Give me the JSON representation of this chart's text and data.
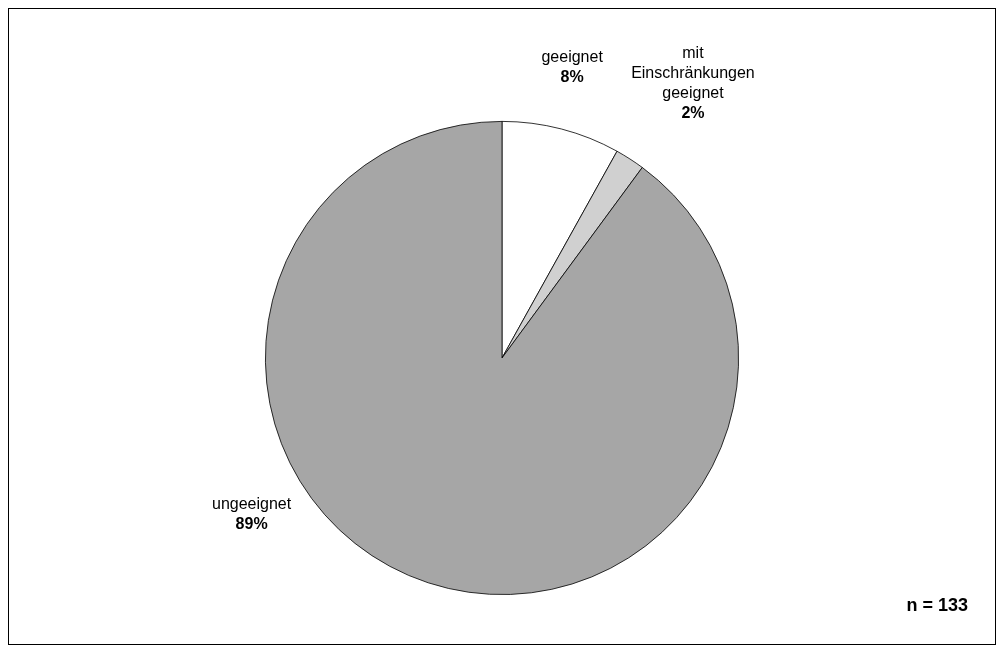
{
  "chart_data": {
    "type": "pie",
    "categories": [
      "geeignet",
      "mit Einschränkungen geeignet",
      "ungeeignet"
    ],
    "values": [
      8,
      2,
      89
    ],
    "value_labels": [
      "8%",
      "2%",
      "89%"
    ],
    "colors": [
      "#ffffff",
      "#d0d0d0",
      "#a6a6a6"
    ],
    "legend": false,
    "annotations": [
      "n = 133"
    ]
  }
}
